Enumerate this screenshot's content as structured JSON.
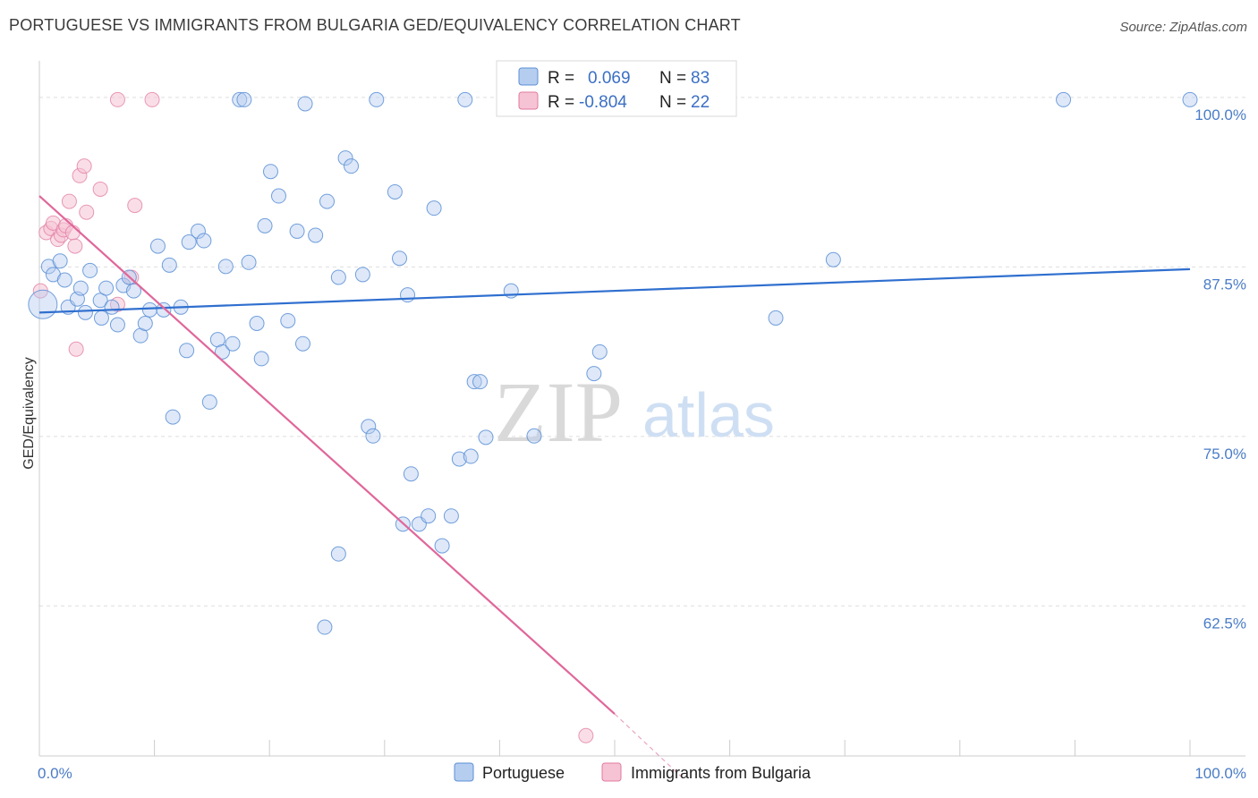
{
  "title": "PORTUGUESE VS IMMIGRANTS FROM BULGARIA GED/EQUIVALENCY CORRELATION CHART",
  "source": "Source: ZipAtlas.com",
  "watermark": {
    "zip": "ZIP",
    "atlas": "atlas"
  },
  "colors": {
    "blue": "#5b8fd6",
    "blue_fill": "#b5cdef",
    "pink": "#e07aa0",
    "pink_fill": "#f6c3d4",
    "tick": "#4a7cc7"
  },
  "chart_data": {
    "type": "scatter",
    "title": "PORTUGUESE VS IMMIGRANTS FROM BULGARIA GED/EQUIVALENCY CORRELATION CHART",
    "xlabel": "",
    "ylabel": "GED/Equivalency",
    "xlim": [
      0,
      100
    ],
    "ylim": [
      51.5,
      102.5
    ],
    "x_ticks": [
      "0.0%",
      "100.0%"
    ],
    "y_ticks": [
      {
        "value": 100.0,
        "label": "100.0%"
      },
      {
        "value": 87.5,
        "label": "87.5%"
      },
      {
        "value": 75.0,
        "label": "75.0%"
      },
      {
        "value": 62.5,
        "label": "62.5%"
      }
    ],
    "legend": {
      "r_label": "R =",
      "n_label": "N =",
      "entries": [
        {
          "series": "Portuguese",
          "r": "0.069",
          "n": "83"
        },
        {
          "series": "Immigrants from Bulgaria",
          "r": "-0.804",
          "n": "22"
        }
      ]
    },
    "series": [
      {
        "name": "Portuguese",
        "trend": {
          "x1": 0,
          "y1": 84.2,
          "x2": 100,
          "y2": 87.4
        },
        "points": [
          [
            0.3,
            84.8
          ],
          [
            0.8,
            87.6
          ],
          [
            1.2,
            87.0
          ],
          [
            1.8,
            88.0
          ],
          [
            2.2,
            86.6
          ],
          [
            2.5,
            84.6
          ],
          [
            3.3,
            85.2
          ],
          [
            3.6,
            86.0
          ],
          [
            4.0,
            84.2
          ],
          [
            4.4,
            87.3
          ],
          [
            5.3,
            85.1
          ],
          [
            5.4,
            83.8
          ],
          [
            5.8,
            86.0
          ],
          [
            6.3,
            84.6
          ],
          [
            6.8,
            83.3
          ],
          [
            7.3,
            86.2
          ],
          [
            7.8,
            86.8
          ],
          [
            8.2,
            85.8
          ],
          [
            8.8,
            82.5
          ],
          [
            9.2,
            83.4
          ],
          [
            9.6,
            84.4
          ],
          [
            10.3,
            89.1
          ],
          [
            10.8,
            84.4
          ],
          [
            11.3,
            87.7
          ],
          [
            11.6,
            76.5
          ],
          [
            12.3,
            84.6
          ],
          [
            12.8,
            81.4
          ],
          [
            13.0,
            89.4
          ],
          [
            13.8,
            90.2
          ],
          [
            14.3,
            89.5
          ],
          [
            14.8,
            77.6
          ],
          [
            15.5,
            82.2
          ],
          [
            15.9,
            81.3
          ],
          [
            16.2,
            87.6
          ],
          [
            16.8,
            81.9
          ],
          [
            17.4,
            99.9
          ],
          [
            17.8,
            99.9
          ],
          [
            18.2,
            87.9
          ],
          [
            18.9,
            83.4
          ],
          [
            19.3,
            80.8
          ],
          [
            19.6,
            90.6
          ],
          [
            20.1,
            94.6
          ],
          [
            20.8,
            92.8
          ],
          [
            21.6,
            83.6
          ],
          [
            22.4,
            90.2
          ],
          [
            22.9,
            81.9
          ],
          [
            23.1,
            99.6
          ],
          [
            24.0,
            89.9
          ],
          [
            25.0,
            92.4
          ],
          [
            26.0,
            86.8
          ],
          [
            26.6,
            95.6
          ],
          [
            27.1,
            95.0
          ],
          [
            28.1,
            87.0
          ],
          [
            28.6,
            75.8
          ],
          [
            29.0,
            75.1
          ],
          [
            29.3,
            99.9
          ],
          [
            30.9,
            93.1
          ],
          [
            31.3,
            88.2
          ],
          [
            32.0,
            85.5
          ],
          [
            32.3,
            72.3
          ],
          [
            31.6,
            68.6
          ],
          [
            33.0,
            68.6
          ],
          [
            33.8,
            69.2
          ],
          [
            34.3,
            91.9
          ],
          [
            35.0,
            67.0
          ],
          [
            35.8,
            69.2
          ],
          [
            36.5,
            73.4
          ],
          [
            37.0,
            99.9
          ],
          [
            37.5,
            73.6
          ],
          [
            37.8,
            79.1
          ],
          [
            38.3,
            79.1
          ],
          [
            38.8,
            75.0
          ],
          [
            26.0,
            66.4
          ],
          [
            24.8,
            61.0
          ],
          [
            41.0,
            85.8
          ],
          [
            43.0,
            75.1
          ],
          [
            48.2,
            79.7
          ],
          [
            48.7,
            81.3
          ],
          [
            51.0,
            99.9
          ],
          [
            64.0,
            83.8
          ],
          [
            69.0,
            88.1
          ],
          [
            89.0,
            99.9
          ],
          [
            100.0,
            99.9
          ]
        ]
      },
      {
        "name": "Immigrants from Bulgaria",
        "trend": {
          "x1": 0,
          "y1": 92.8,
          "x2": 50,
          "y2": 54.6
        },
        "trend_dashed_to": {
          "x": 56,
          "y": 49.8
        },
        "points": [
          [
            0.1,
            85.8
          ],
          [
            0.6,
            90.1
          ],
          [
            1.0,
            90.4
          ],
          [
            1.2,
            90.8
          ],
          [
            1.6,
            89.6
          ],
          [
            1.9,
            89.9
          ],
          [
            2.1,
            90.3
          ],
          [
            2.3,
            90.6
          ],
          [
            2.6,
            92.4
          ],
          [
            2.9,
            90.1
          ],
          [
            3.1,
            89.1
          ],
          [
            3.5,
            94.3
          ],
          [
            3.9,
            95.0
          ],
          [
            3.2,
            81.5
          ],
          [
            4.1,
            91.6
          ],
          [
            5.3,
            93.3
          ],
          [
            6.8,
            99.9
          ],
          [
            6.8,
            84.8
          ],
          [
            8.0,
            86.8
          ],
          [
            8.3,
            92.1
          ],
          [
            9.8,
            99.9
          ],
          [
            47.5,
            53.0
          ]
        ]
      }
    ]
  }
}
